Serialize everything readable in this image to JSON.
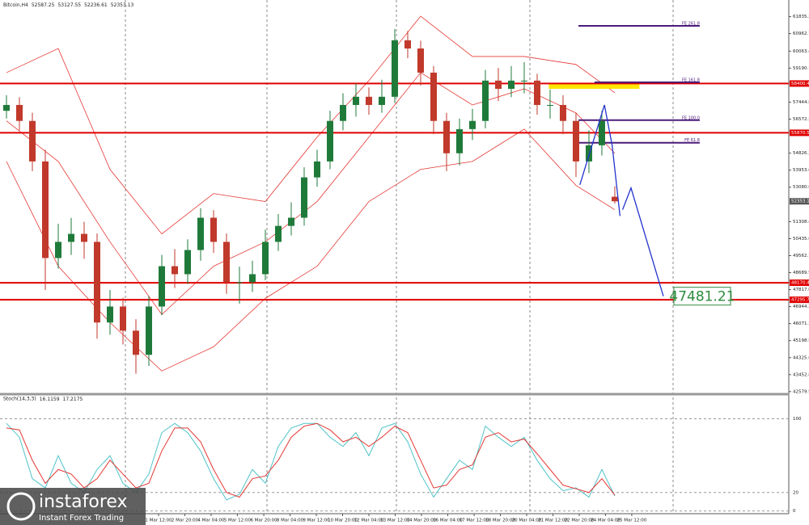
{
  "chart_data": [
    {
      "type": "candlestick",
      "title": "Bitcoin,H4",
      "open": [
        57000,
        57300,
        56480,
        54400,
        49440,
        50270,
        50680,
        50270,
        46130,
        46950,
        45710,
        44470,
        46950,
        49020,
        48610,
        49850,
        51510,
        50270,
        48200,
        48200,
        48610,
        50270,
        51090,
        51510,
        53580,
        54400,
        56480,
        57300,
        57720,
        57300,
        57720,
        60620,
        60200,
        58960,
        56480,
        54820,
        56060,
        56480,
        58550,
        58130,
        58550,
        58550,
        57300,
        57300,
        56480,
        54400,
        55230,
        52587.25
      ],
      "high": [
        57800,
        57700,
        56900,
        55000,
        51200,
        51500,
        51300,
        50700,
        47800,
        47400,
        46300,
        47500,
        49600,
        49900,
        50400,
        52000,
        51900,
        50700,
        49000,
        49300,
        50900,
        51700,
        52300,
        54100,
        55000,
        57000,
        57900,
        58400,
        58200,
        58600,
        61200,
        61100,
        60600,
        59300,
        56900,
        56600,
        57100,
        59100,
        59200,
        59300,
        59500,
        58900,
        58100,
        57800,
        56900,
        56000,
        57000,
        53127.55
      ],
      "low": [
        56600,
        56000,
        53900,
        47800,
        48900,
        49600,
        49400,
        45300,
        45500,
        45000,
        43500,
        43900,
        46500,
        47900,
        48100,
        49300,
        49700,
        47600,
        47100,
        47700,
        48300,
        49800,
        50600,
        51100,
        53100,
        54000,
        56000,
        56700,
        56800,
        56900,
        57400,
        59700,
        58300,
        55800,
        53900,
        54200,
        55500,
        56100,
        57500,
        57700,
        57900,
        56800,
        56600,
        55800,
        53600,
        53800,
        54700,
        52236.61
      ],
      "close": [
        57300,
        56480,
        54400,
        49440,
        50270,
        50680,
        50270,
        46130,
        46950,
        45710,
        44470,
        46950,
        49020,
        48610,
        49850,
        51510,
        50270,
        48200,
        48200,
        48610,
        50270,
        51090,
        51510,
        53580,
        54400,
        56480,
        57300,
        57720,
        57300,
        57720,
        60620,
        60200,
        58960,
        56480,
        54820,
        56060,
        56480,
        58550,
        58130,
        58550,
        58550,
        57300,
        57300,
        56480,
        54400,
        55230,
        56480,
        52353.13
      ],
      "up_color": "#1f7a3a",
      "down_color": "#c0392b",
      "xlim": [
        -0.5,
        60.44
      ],
      "ylim": [
        42450,
        62690
      ],
      "yticks": [
        61835.35,
        {
          "value": 60962.7,
          "label": "60962.70"
        },
        {
          "value": 60063.4,
          "label": "60063.40"
        },
        59190.75,
        57444.85,
        {
          "value": 56572.2,
          "label": "56572.20"
        },
        {
          "value": 54826.3,
          "label": "54826.30"
        },
        53953.65,
        {
          "value": 53080.6,
          "label": "53080.60"
        },
        51308.45,
        {
          "value": 50435.6,
          "label": "50435.60"
        },
        49562.75,
        {
          "value": 48689.9,
          "label": "48689.90"
        },
        47817.05,
        {
          "value": 46944.2,
          "label": "46944.20"
        },
        46071.35,
        {
          "value": 45198.5,
          "label": "45198.50"
        },
        44325.65,
        {
          "value": 43452.8,
          "label": "43452.80"
        },
        42579.95
      ],
      "xticks": [
        {
          "value": 11.75,
          "label": "1 Mar 12:00"
        },
        {
          "value": 13.78,
          "label": "2 Mar 20:00"
        },
        {
          "value": 15.81,
          "label": "4 Mar 04:00"
        },
        {
          "value": 17.84,
          "label": "5 Mar 12:00"
        },
        {
          "value": 19.88,
          "label": "6 Mar 20:00"
        },
        {
          "value": 21.91,
          "label": "8 Mar 04:00"
        },
        {
          "value": 23.94,
          "label": "9 Mar 12:00"
        },
        {
          "value": 25.97,
          "label": "10 Mar 20:00"
        },
        {
          "value": 28,
          "label": "12 Mar 04:00"
        },
        {
          "value": 30.03,
          "label": "13 Mar 12:00"
        },
        {
          "value": 32.06,
          "label": "14 Mar 20:00"
        },
        {
          "value": 34.09,
          "label": "16 Mar 04:00"
        },
        {
          "value": 36.13,
          "label": "17 Mar 12:00"
        },
        {
          "value": 38.16,
          "label": "18 Mar 20:00"
        },
        {
          "value": 40.19,
          "label": "20 Mar 04:00"
        },
        {
          "value": 42.22,
          "label": "21 Mar 12:00"
        },
        {
          "value": 44.25,
          "label": "22 Mar 20:00"
        },
        {
          "value": 46.28,
          "label": "24 Mar 04:00"
        },
        {
          "value": 48.31,
          "label": "25 Mar 12:00"
        }
      ],
      "bands": {
        "color": "#e53935",
        "x": [
          0,
          4,
          8,
          12,
          16,
          20,
          24,
          28,
          32,
          36,
          40,
          44,
          47
        ],
        "upper": [
          58960,
          60200,
          53990,
          50680,
          52750,
          52340,
          55650,
          58550,
          61860,
          59790,
          59790,
          59380,
          57930
        ],
        "middle": [
          56480,
          54400,
          50270,
          46540,
          49020,
          50270,
          52340,
          55650,
          58960,
          57300,
          58130,
          56890,
          54820
        ],
        "lower": [
          54400,
          49020,
          46130,
          43640,
          44880,
          47370,
          49020,
          52340,
          53990,
          54400,
          56060,
          53170,
          51920
        ]
      },
      "levels": {
        "color": "#e00000",
        "values": [
          58400.42,
          55870.52,
          {
            "value": 48170.4,
            "label": "48170.40"
          },
          47295.76
        ]
      },
      "fib": {
        "color": "#4b1b7a",
        "levels": [
          {
            "label": "FE 261.8",
            "value": 61365,
            "x": [
              44.19,
              53.56
            ]
          },
          {
            "label": "FE 161.8",
            "value": 58466,
            "x": [
              45.44,
              53.56
            ]
          },
          {
            "label": "FE 100.0",
            "value": 56520,
            "x": [
              44.19,
              53.56
            ]
          },
          {
            "label": "FE 61.8",
            "value": 55360,
            "x": [
              44.19,
              53.56
            ]
          }
        ]
      },
      "zone": {
        "color": "#ffe600",
        "x": [
          41.9,
          48.9
        ],
        "y": [
          58130,
          58420
        ]
      },
      "pattern": {
        "color": "#2233cc",
        "x": [
          44.3,
          46.2,
          46.8,
          47.4
        ],
        "values": [
          53200,
          57300,
          55200,
          51600
        ]
      },
      "projection": {
        "color": "#2233cc",
        "x": [
          47.6,
          48.25,
          50.75
        ],
        "values": [
          51920,
          53040,
          47481.21
        ],
        "label_color": "#2e8b3e"
      }
    },
    {
      "type": "line",
      "title": "Stoch(14,3,3)",
      "series": [
        {
          "color": "#4fc3c8",
          "values": [
            95,
            80,
            35,
            25,
            60,
            30,
            20,
            45,
            60,
            30,
            20,
            40,
            85,
            95,
            85,
            65,
            35,
            12,
            18,
            45,
            30,
            70,
            90,
            95,
            95,
            80,
            70,
            85,
            60,
            90,
            95,
            75,
            40,
            15,
            35,
            55,
            45,
            92,
            80,
            70,
            80,
            55,
            35,
            22,
            25,
            15,
            45,
            16.1159
          ]
        },
        {
          "color": "#e53935",
          "values": [
            90,
            88,
            55,
            30,
            45,
            40,
            25,
            35,
            55,
            40,
            25,
            30,
            65,
            90,
            90,
            75,
            45,
            20,
            15,
            35,
            38,
            55,
            80,
            92,
            95,
            88,
            75,
            80,
            70,
            80,
            92,
            85,
            55,
            25,
            28,
            45,
            50,
            80,
            85,
            75,
            78,
            62,
            45,
            28,
            24,
            20,
            35,
            17.2175
          ]
        }
      ],
      "ylim": [
        -3,
        125
      ],
      "yticks": [
        0,
        20,
        100
      ],
      "grid": true
    }
  ],
  "watermark": {
    "brand": "instaforex",
    "tagline": "Instant Forex Trading"
  }
}
